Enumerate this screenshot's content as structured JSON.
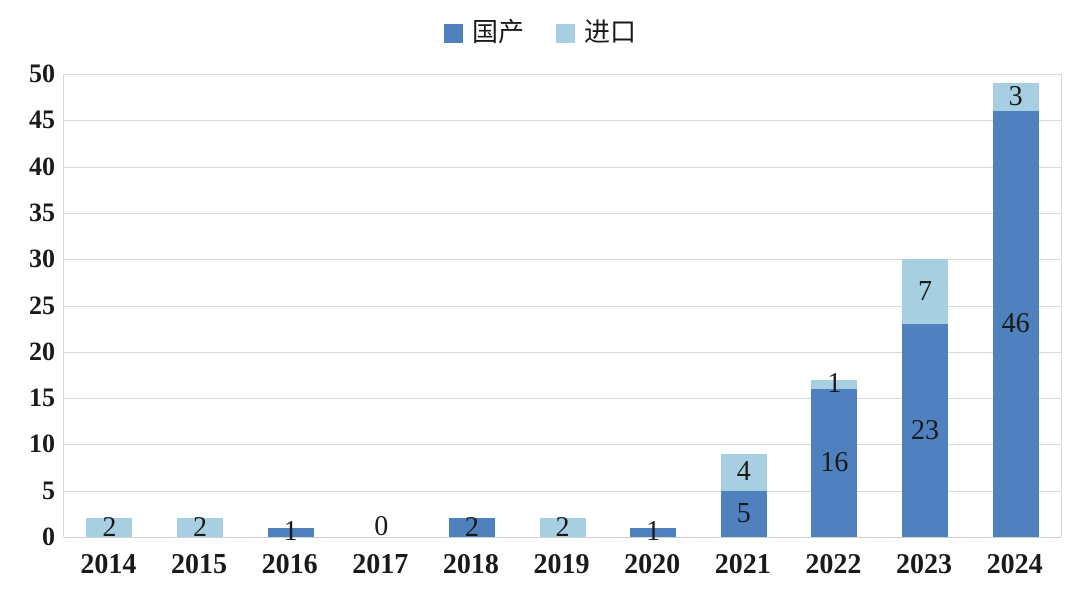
{
  "chart_data": {
    "type": "bar",
    "stacked": true,
    "title": "",
    "xlabel": "",
    "ylabel": "",
    "categories": [
      "2014",
      "2015",
      "2016",
      "2017",
      "2018",
      "2019",
      "2020",
      "2021",
      "2022",
      "2023",
      "2024"
    ],
    "series": [
      {
        "name": "国产",
        "color": "#4E81BD",
        "values": [
          0,
          0,
          1,
          0,
          2,
          0,
          1,
          5,
          16,
          23,
          46
        ]
      },
      {
        "name": "进口",
        "color": "#A6CFE2",
        "values": [
          2,
          2,
          0,
          0,
          0,
          2,
          0,
          4,
          1,
          7,
          3
        ]
      }
    ],
    "data_labels": true,
    "zero_label_categories": [
      "2017"
    ],
    "ylim": [
      0,
      50
    ],
    "yticks": [
      0,
      5,
      10,
      15,
      20,
      25,
      30,
      35,
      40,
      45,
      50
    ],
    "legend_position": "top-center",
    "grid": "horizontal",
    "gridline_color": "#D9D9D9",
    "label_color": "#1A1A1A",
    "background_color": "#FFFFFF"
  }
}
